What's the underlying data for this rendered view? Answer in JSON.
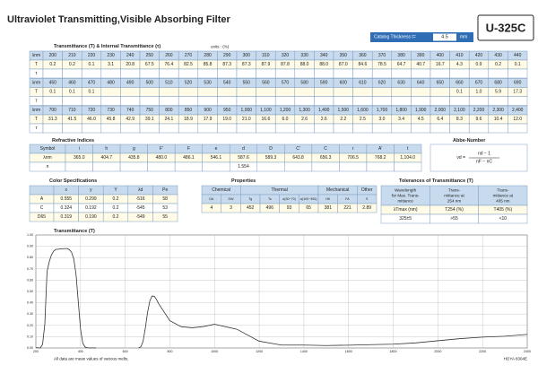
{
  "header": {
    "title": "Ultraviolet Transmitting,Visible Absorbing Filter",
    "thickness_label": "Catalog Thickness t=",
    "thickness": "4.5",
    "thickness_unit": "mm",
    "code": "U-325C"
  },
  "transmittance_table": {
    "title": "Transmittance (T) & Internal Transmittance (τ)",
    "units": "units : (%)",
    "wavelength_label": "λnm",
    "t_label": "T",
    "tau_label": "τ",
    "blocks": [
      {
        "wavelengths": [
          "200",
          "210",
          "220",
          "230",
          "240",
          "250",
          "260",
          "270",
          "280",
          "290",
          "300",
          "310",
          "320",
          "330",
          "340",
          "350",
          "360",
          "370",
          "380",
          "390",
          "400",
          "410",
          "420",
          "430",
          "440"
        ],
        "T": [
          "0.2",
          "0.2",
          "0.1",
          "3.1",
          "20.8",
          "67.5",
          "76.4",
          "82.5",
          "85.8",
          "87.3",
          "87.3",
          "87.9",
          "87.8",
          "88.0",
          "88.0",
          "87.0",
          "84.6",
          "78.5",
          "64.7",
          "40.7",
          "16.7",
          "4.3",
          "0.9",
          "0.2",
          "0.1"
        ]
      },
      {
        "wavelengths": [
          "450",
          "460",
          "470",
          "480",
          "490",
          "500",
          "510",
          "520",
          "530",
          "540",
          "550",
          "560",
          "570",
          "580",
          "590",
          "600",
          "610",
          "620",
          "630",
          "640",
          "650",
          "660",
          "670",
          "680",
          "690"
        ],
        "T": [
          "0.1",
          "0.1",
          "0.1",
          null,
          null,
          null,
          null,
          null,
          null,
          null,
          null,
          null,
          null,
          null,
          null,
          null,
          null,
          null,
          null,
          null,
          null,
          "0.1",
          "1.0",
          "5.9",
          "17.3"
        ]
      },
      {
        "wavelengths": [
          "700",
          "710",
          "720",
          "730",
          "740",
          "750",
          "800",
          "850",
          "900",
          "950",
          "1,000",
          "1,100",
          "1,200",
          "1,300",
          "1,400",
          "1,500",
          "1,600",
          "1,700",
          "1,800",
          "1,900",
          "2,000",
          "2,100",
          "2,200",
          "2,300",
          "2,400"
        ],
        "T": [
          "31.3",
          "41.5",
          "46.0",
          "45.8",
          "42.9",
          "39.1",
          "24.1",
          "18.9",
          "17.9",
          "19.0",
          "21.0",
          "16.6",
          "6.0",
          "2.6",
          "2.6",
          "2.2",
          "2.5",
          "3.0",
          "3.4",
          "4.5",
          "6.4",
          "8.3",
          "9.6",
          "10.4",
          "12.0"
        ]
      }
    ]
  },
  "refractive_indices": {
    "title": "Refractive Indices",
    "row_labels": [
      "Symbol",
      "λnm",
      "n"
    ],
    "symbols": [
      "i",
      "h",
      "g",
      "F'",
      "F",
      "e",
      "d",
      "D",
      "C'",
      "C",
      "r",
      "A'",
      "t"
    ],
    "wavelengths": [
      "365.0",
      "404.7",
      "435.8",
      "480.0",
      "486.1",
      "546.1",
      "587.6",
      "589.3",
      "643.8",
      "656.3",
      "706.5",
      "768.2",
      "1,104.0"
    ],
    "n": [
      null,
      null,
      null,
      null,
      null,
      null,
      "1.554",
      null,
      null,
      null,
      null,
      null,
      null
    ]
  },
  "abbe_number": {
    "title": "Abbe-Number",
    "lhs": "νd =",
    "numerator": "nd − 1",
    "denominator": "nF − nC"
  },
  "color_specifications": {
    "title": "Color Specifications",
    "columns": [
      "x",
      "y",
      "Y",
      "λd",
      "Pe"
    ],
    "rows": [
      {
        "label": "A",
        "values": [
          "0.555",
          "0.299",
          "0.2",
          "-516",
          "58"
        ]
      },
      {
        "label": "C",
        "values": [
          "0.324",
          "0.192",
          "0.2",
          "-545",
          "53"
        ]
      },
      {
        "label": "D65",
        "values": [
          "0.319",
          "0.190",
          "0.2",
          "-549",
          "55"
        ]
      }
    ]
  },
  "properties": {
    "title": "Properties",
    "groups": [
      {
        "name": "Chemical",
        "symbols": [
          "DA",
          "DW"
        ],
        "values": [
          "4",
          "3"
        ]
      },
      {
        "name": "Thermal",
        "symbols": [
          "Tg",
          "Ts",
          "α(30~70)",
          "α(100~300)"
        ],
        "values": [
          "452",
          "496",
          "93",
          "65"
        ]
      },
      {
        "name": "Mechanical",
        "symbols": [
          "HK",
          "FA"
        ],
        "values": [
          "381",
          "221"
        ]
      },
      {
        "name": "Other",
        "symbols": [
          "S"
        ],
        "values": [
          "2.89"
        ]
      }
    ]
  },
  "tolerances": {
    "title": "Tolerances of Transmittance (T)",
    "headers": [
      [
        "Wavelength",
        "for Max. Trans-",
        "mittance"
      ],
      [
        "Trans-",
        "mittance at",
        "254 nm"
      ],
      [
        "Trans-",
        "mittance at",
        "405 nm"
      ]
    ],
    "subheaders": [
      "λTmax (nm)",
      "T254 (%)",
      "T405 (%)"
    ],
    "values": [
      "325±5",
      ">55",
      "<10"
    ]
  },
  "chart_data": {
    "type": "line",
    "title": "Transmittance (T)",
    "x": [
      200,
      210,
      220,
      230,
      240,
      250,
      260,
      270,
      280,
      290,
      300,
      310,
      320,
      330,
      340,
      350,
      360,
      370,
      380,
      390,
      400,
      410,
      420,
      430,
      440,
      450,
      460,
      470,
      480,
      490,
      500,
      510,
      520,
      530,
      540,
      550,
      560,
      570,
      580,
      590,
      600,
      610,
      620,
      630,
      640,
      650,
      660,
      670,
      680,
      690,
      700,
      710,
      720,
      730,
      740,
      750,
      800,
      850,
      900,
      950,
      1000,
      1100,
      1200,
      1300,
      1400,
      1500,
      1600,
      1700,
      1800,
      1900,
      2000,
      2100,
      2200,
      2300,
      2400
    ],
    "values": [
      0.2,
      0.2,
      0.1,
      3.1,
      20.8,
      67.5,
      76.4,
      82.5,
      85.8,
      87.3,
      87.3,
      87.9,
      87.8,
      88.0,
      88.0,
      87.0,
      84.6,
      78.5,
      64.7,
      40.7,
      16.7,
      4.3,
      0.9,
      0.2,
      0.1,
      0.1,
      0.1,
      0.1,
      null,
      null,
      null,
      null,
      null,
      null,
      null,
      null,
      null,
      null,
      null,
      null,
      null,
      null,
      null,
      null,
      null,
      null,
      0.1,
      1.0,
      5.9,
      17.3,
      31.3,
      41.5,
      46.0,
      45.8,
      42.9,
      39.1,
      24.1,
      18.9,
      17.9,
      19.0,
      21.0,
      16.6,
      6.0,
      2.6,
      2.6,
      2.2,
      2.5,
      3.0,
      3.4,
      4.5,
      6.4,
      8.3,
      9.6,
      10.4,
      12.0
    ],
    "color": "#333333",
    "xlim": [
      200,
      2400
    ],
    "xticks": [
      200,
      400,
      600,
      800,
      1000,
      1200,
      1400,
      1600,
      1800,
      2000,
      2200,
      2400
    ],
    "ylim": [
      0,
      100
    ],
    "yticks": [
      {
        "value": 0,
        "label": "0.00"
      },
      {
        "value": 10,
        "label": "0.10"
      },
      {
        "value": 20,
        "label": "0.20"
      },
      {
        "value": 30,
        "label": "0.30"
      },
      {
        "value": 40,
        "label": "0.40"
      },
      {
        "value": 50,
        "label": "0.50"
      },
      {
        "value": 60,
        "label": "0.60"
      },
      {
        "value": 70,
        "label": "0.70"
      },
      {
        "value": 80,
        "label": "0.80"
      },
      {
        "value": 90,
        "label": "0.90"
      },
      {
        "value": 100,
        "label": "1.00"
      }
    ],
    "grid": true
  },
  "footer": {
    "note": "All data are mean values of various melts.",
    "code": "HOYA 8304E"
  }
}
